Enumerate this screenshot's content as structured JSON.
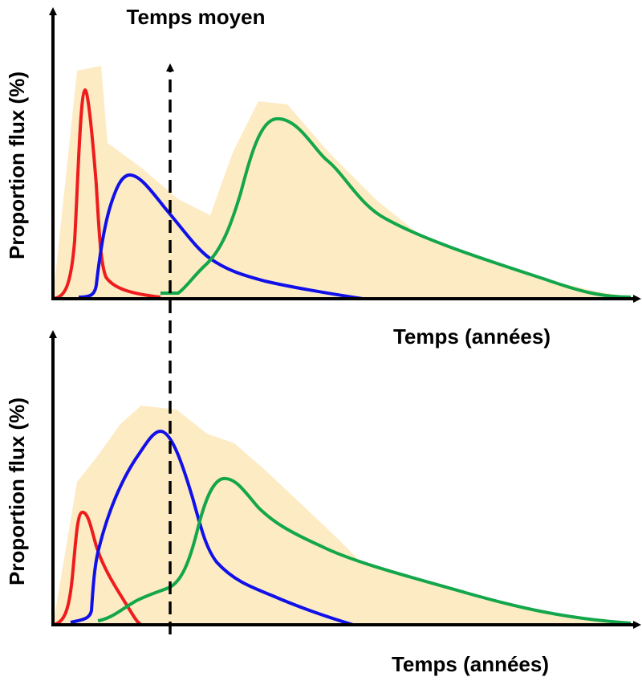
{
  "title": "Temps moyen",
  "colors": {
    "envelope": "#fdebc4",
    "red": "#ee1c1c",
    "blue": "#1010e8",
    "green": "#13a64a",
    "axis": "#000000"
  },
  "panels": [
    {
      "ylabel": "Proportion flux (%)",
      "xlabel": "Temps (années)"
    },
    {
      "ylabel": "Proportion flux (%)",
      "xlabel": "Temps (années)"
    }
  ]
}
